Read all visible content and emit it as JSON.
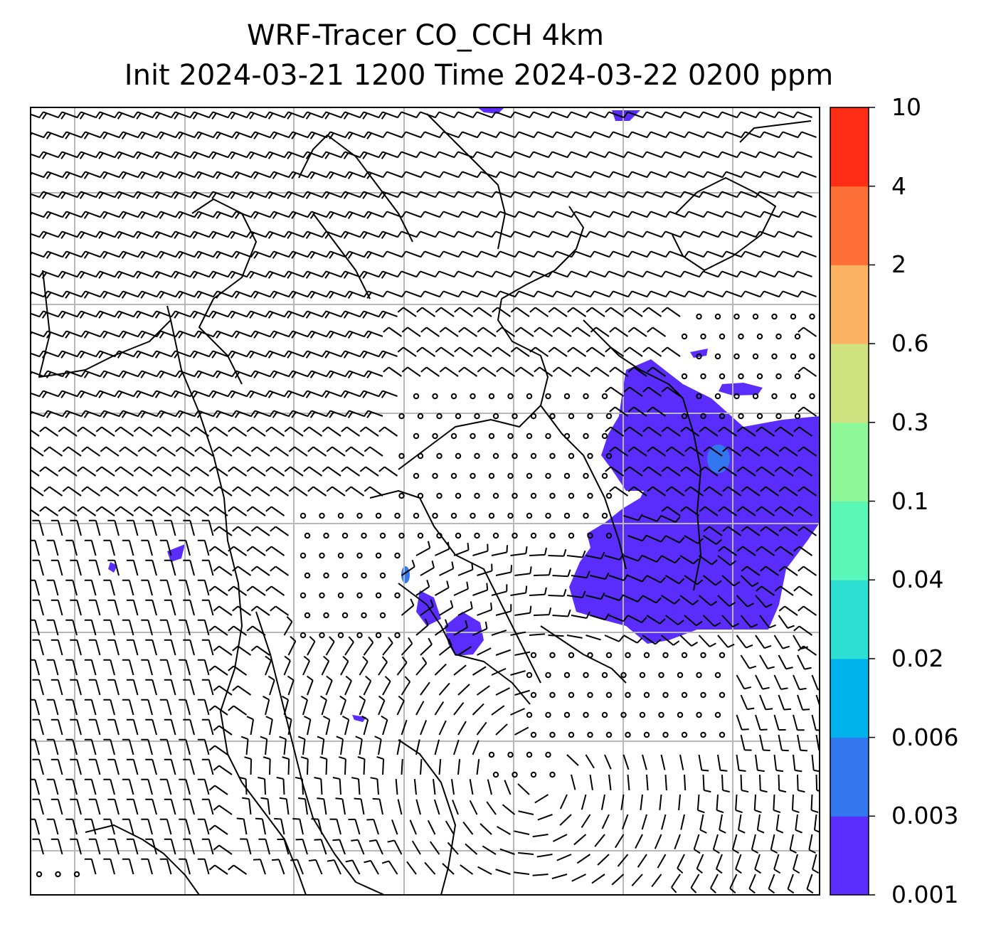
{
  "title": {
    "line1": "WRF-Tracer CO_CCH 4km",
    "line2": "Init 2024-03-21 1200 Time 2024-03-22 0200 ppm"
  },
  "colorbar": {
    "levels": [
      "0.001",
      "0.003",
      "0.006",
      "0.02",
      "0.04",
      "0.1",
      "0.3",
      "0.6",
      "2",
      "4",
      "10"
    ],
    "colors": [
      "#5a2dfc",
      "#3377f0",
      "#00b3ec",
      "#2ee0d4",
      "#5af7b8",
      "#8ef797",
      "#cfe07e",
      "#fcb263",
      "#ff7038",
      "#ff2c16"
    ]
  },
  "map": {
    "field": "CO_CCH tracer concentration",
    "plume_color": "#5a2dfc",
    "peak_color": "#3377f0",
    "overlays": [
      "wind-barbs",
      "coastlines",
      "borders",
      "lat-lon-gridlines"
    ],
    "gridline_color": "#b8b8b8"
  }
}
